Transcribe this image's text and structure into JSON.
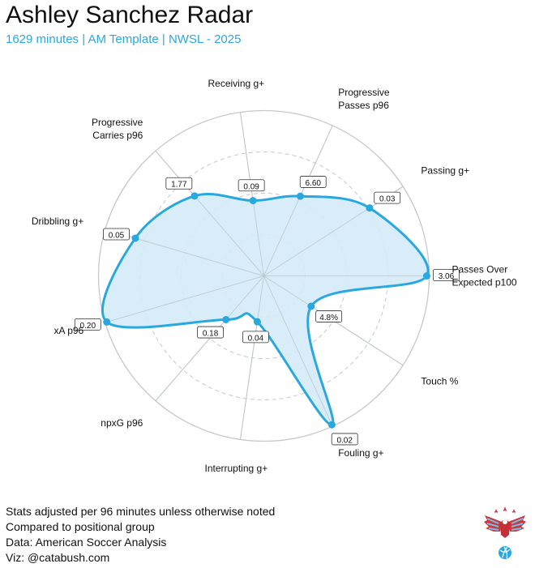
{
  "header": {
    "title": "Ashley Sanchez Radar",
    "subtitle": "1629 minutes | AM Template | NWSL - 2025"
  },
  "footer": {
    "lines": [
      "Stats adjusted per 96 minutes unless otherwise noted",
      "Compared to positional group",
      "Data: American Soccer Analysis",
      "Viz: @catabush.com"
    ]
  },
  "colors": {
    "accent": "#29a8e0",
    "fill": "#d4ebf7",
    "grid": "#c8c8c8"
  },
  "chart_data": {
    "type": "radar",
    "title": "Ashley Sanchez Radar",
    "axes": [
      {
        "label": [
          "Passes Over",
          "Expected p100"
        ],
        "value_label": "3.06",
        "percentile": 0.985
      },
      {
        "label": [
          "Passing g+"
        ],
        "value_label": "0.03",
        "percentile": 0.76
      },
      {
        "label": [
          "Progressive",
          "Passes p96"
        ],
        "value_label": "6.60",
        "percentile": 0.53
      },
      {
        "label": [
          "Receiving g+"
        ],
        "value_label": "0.09",
        "percentile": 0.46
      },
      {
        "label": [
          "Progressive",
          "Carries p96"
        ],
        "value_label": "1.77",
        "percentile": 0.64
      },
      {
        "label": [
          "Dribbling g+"
        ],
        "value_label": "0.05",
        "percentile": 0.81
      },
      {
        "label": [
          "xA p96"
        ],
        "value_label": "0.20",
        "percentile": 0.99
      },
      {
        "label": [
          "npxG p96"
        ],
        "value_label": "0.18",
        "percentile": 0.35
      },
      {
        "label": [
          "Interrupting g+"
        ],
        "value_label": "0.04",
        "percentile": 0.28
      },
      {
        "label": [
          "Fouling g+"
        ],
        "value_label": "0.02",
        "percentile": 0.99
      },
      {
        "label": [
          "Touch %"
        ],
        "value_label": "4.8%",
        "percentile": 0.34
      }
    ],
    "rlim": [
      0,
      1
    ],
    "grid_rings": [
      0.25,
      0.5,
      0.75,
      1.0
    ]
  }
}
